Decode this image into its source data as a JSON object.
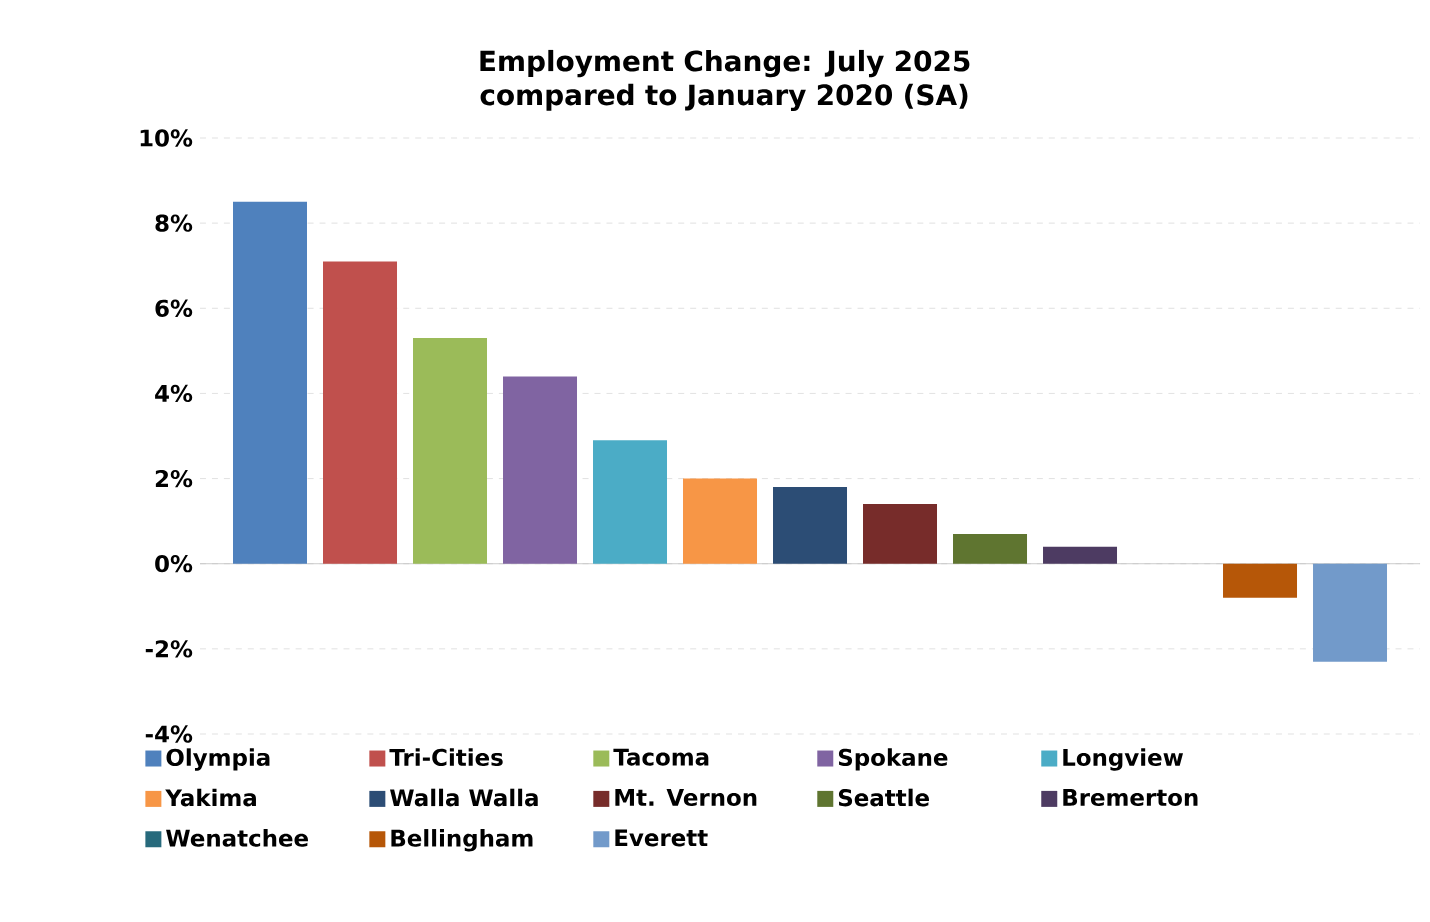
{
  "chart_data": {
    "type": "bar",
    "title": "Employment Change: July 2025 compared to January 2020 (SA)",
    "categories": [
      null
    ],
    "series": [
      {
        "name": "Olympia",
        "color": "#4f81bd",
        "values": [
          8.5
        ]
      },
      {
        "name": "Tri-Cities",
        "color": "#c0504d",
        "values": [
          7.1
        ]
      },
      {
        "name": "Tacoma",
        "color": "#9bbb59",
        "values": [
          5.3
        ]
      },
      {
        "name": "Spokane",
        "color": "#8064a2",
        "values": [
          4.4
        ]
      },
      {
        "name": "Longview",
        "color": "#4bacc6",
        "values": [
          2.9
        ]
      },
      {
        "name": "Yakima",
        "color": "#f79646",
        "values": [
          2.0
        ]
      },
      {
        "name": "Walla Walla",
        "color": "#2c4d75",
        "values": [
          1.8
        ]
      },
      {
        "name": "Mt. Vernon",
        "color": "#772c2a",
        "values": [
          1.4
        ]
      },
      {
        "name": "Seattle",
        "color": "#5f7530",
        "values": [
          0.7
        ]
      },
      {
        "name": "Bremerton",
        "color": "#4d3b62",
        "values": [
          0.4
        ]
      },
      {
        "name": "Wenatchee",
        "color": "#276a7c",
        "values": [
          0
        ]
      },
      {
        "name": "Bellingham",
        "color": "#b65708",
        "values": [
          -0.8
        ]
      },
      {
        "name": "Everett",
        "color": "#729aca",
        "values": [
          -2.3
        ]
      }
    ],
    "ylim": [
      -4,
      10
    ],
    "yticks": [
      {
        "value": -4,
        "label": "-4%"
      },
      {
        "value": -2,
        "label": "-2%"
      },
      {
        "value": 0,
        "label": "0%"
      },
      {
        "value": 2,
        "label": "2%"
      },
      {
        "value": 4,
        "label": "4%"
      },
      {
        "value": 6,
        "label": "6%"
      },
      {
        "value": 8,
        "label": "8%"
      },
      {
        "value": 10,
        "label": "10%"
      }
    ],
    "grid": "y",
    "legend": "bottom"
  }
}
